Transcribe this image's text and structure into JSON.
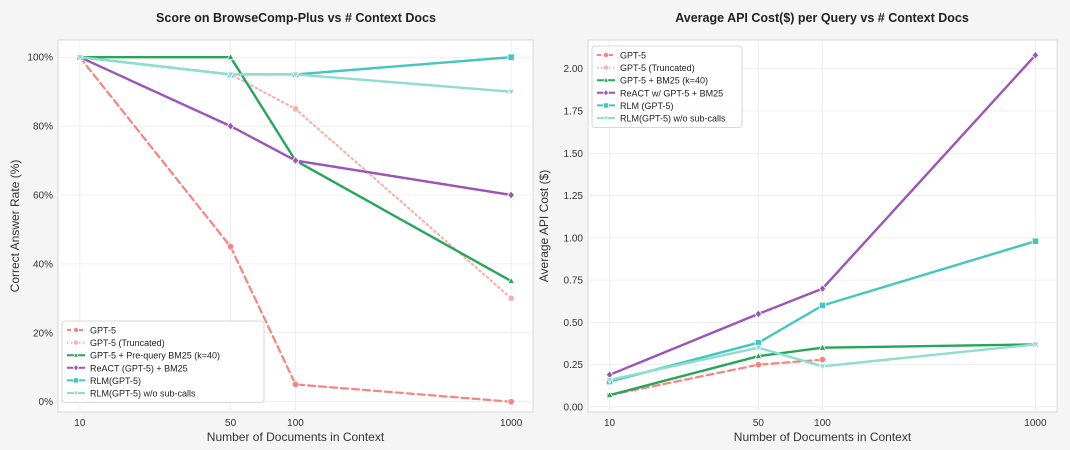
{
  "chart_data": [
    {
      "type": "line",
      "title": "Score on BrowseComp-Plus vs # Context Docs",
      "xlabel": "Number of Documents in Context",
      "ylabel": "Correct Answer Rate (%)",
      "x_scale": "log",
      "x": [
        10,
        50,
        100,
        1000
      ],
      "xticks": [
        "10",
        "50",
        "100",
        "1000"
      ],
      "ylim": [
        -0.03,
        1.05
      ],
      "yticks": [
        0,
        0.2,
        0.4,
        0.6,
        0.8,
        1.0
      ],
      "ytick_labels": [
        "0%",
        "20%",
        "40%",
        "60%",
        "80%",
        "100%"
      ],
      "grid": true,
      "legend_position": "bottom-left",
      "series": [
        {
          "name": "GPT-5",
          "color": "#f8837f",
          "style": "dashed",
          "marker": "circle",
          "values": [
            1.0,
            0.45,
            0.05,
            0.0
          ]
        },
        {
          "name": "GPT-5 (Truncated)",
          "color": "#f9b0a9",
          "style": "dotted",
          "marker": "circle",
          "values": [
            1.0,
            0.95,
            0.85,
            0.3
          ]
        },
        {
          "name": "GPT-5 + Pre-query BM25 (k=40)",
          "color": "#27a55a",
          "style": "solid",
          "marker": "triangle",
          "values": [
            1.0,
            1.0,
            0.7,
            0.35
          ]
        },
        {
          "name": "ReACT (GPT-5) + BM25",
          "color": "#9b54b8",
          "style": "solid",
          "marker": "diamond",
          "values": [
            1.0,
            0.8,
            0.7,
            0.6
          ]
        },
        {
          "name": "RLM(GPT-5)",
          "color": "#44c6bf",
          "style": "solid",
          "marker": "square",
          "values": [
            1.0,
            0.95,
            0.95,
            1.0
          ]
        },
        {
          "name": "RLM(GPT-5) w/o sub-calls",
          "color": "#8fdcd0",
          "style": "solid",
          "marker": "triangle-down",
          "values": [
            1.0,
            0.95,
            0.95,
            0.9
          ]
        }
      ]
    },
    {
      "type": "line",
      "title": "Average API Cost($) per Query vs # Context Docs",
      "xlabel": "Number of Documents in Context",
      "ylabel": "Average API Cost ($)",
      "x_scale": "log",
      "x": [
        10,
        50,
        100,
        1000
      ],
      "xticks": [
        "10",
        "50",
        "100",
        "1000"
      ],
      "ylim": [
        -0.03,
        2.17
      ],
      "yticks": [
        0,
        0.25,
        0.5,
        0.75,
        1.0,
        1.25,
        1.5,
        1.75,
        2.0
      ],
      "ytick_labels": [
        "0.00",
        "0.25",
        "0.50",
        "0.75",
        "1.00",
        "1.25",
        "1.50",
        "1.75",
        "2.00"
      ],
      "grid": true,
      "legend_position": "top-left",
      "series": [
        {
          "name": "GPT-5",
          "color": "#f8837f",
          "style": "dashed",
          "marker": "circle",
          "values": [
            0.07,
            0.25,
            0.28,
            null
          ]
        },
        {
          "name": "GPT-5 (Truncated)",
          "color": "#f9b0a9",
          "style": "dotted",
          "marker": "circle",
          "values": [
            null,
            null,
            null,
            null
          ]
        },
        {
          "name": "GPT-5 + BM25 (k=40)",
          "color": "#27a55a",
          "style": "solid",
          "marker": "triangle",
          "values": [
            0.07,
            0.3,
            0.35,
            0.37
          ]
        },
        {
          "name": "ReACT w/ GPT-5 + BM25",
          "color": "#9b54b8",
          "style": "solid",
          "marker": "diamond",
          "values": [
            0.19,
            0.55,
            0.7,
            2.08
          ]
        },
        {
          "name": "RLM (GPT-5)",
          "color": "#44c6bf",
          "style": "solid",
          "marker": "square",
          "values": [
            0.15,
            0.38,
            0.6,
            0.98
          ]
        },
        {
          "name": "RLM(GPT-5) w/o sub-calls",
          "color": "#8fdcd0",
          "style": "solid",
          "marker": "triangle-down",
          "values": [
            0.16,
            0.35,
            0.24,
            0.37
          ]
        }
      ]
    }
  ]
}
